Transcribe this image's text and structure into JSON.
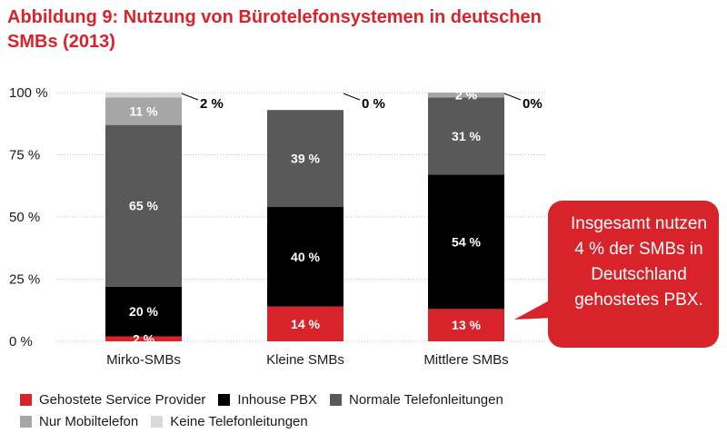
{
  "title": "Abbildung 9: Nutzung von Bürotelefonsystemen in deutschen SMBs (2013)",
  "colors": {
    "gehostet": "#d8232a",
    "inhouse": "#000000",
    "normal": "#595959",
    "mobil": "#a6a6a6",
    "keine": "#d9d9d9",
    "text": "#1a1a1a"
  },
  "callout": "Insgesamt nutzen 4 % der SMBs in Deutschland gehostetes PBX.",
  "chart_data": {
    "type": "bar",
    "stacked": true,
    "title": "Abbildung 9: Nutzung von Bürotelefonsystemen in deutschen SMBs (2013)",
    "categories": [
      "Mirko-SMBs",
      "Kleine SMBs",
      "Mittlere SMBs"
    ],
    "ylim": [
      0,
      100
    ],
    "yticks": [
      0,
      25,
      50,
      75,
      100
    ],
    "ytick_labels": [
      "0 %",
      "25 %",
      "50 %",
      "75 %",
      "100 %"
    ],
    "series": [
      {
        "name": "Gehostete Service Provider",
        "color": "#d8232a",
        "values": [
          2,
          14,
          13
        ],
        "labels": [
          "2 %",
          "14 %",
          "13 %"
        ]
      },
      {
        "name": "Inhouse PBX",
        "color": "#000000",
        "values": [
          20,
          40,
          54
        ],
        "labels": [
          "20 %",
          "40 %",
          "54 %"
        ]
      },
      {
        "name": "Normale Telefonleitungen",
        "color": "#595959",
        "values": [
          65,
          39,
          31
        ],
        "labels": [
          "65 %",
          "39 %",
          "31 %"
        ]
      },
      {
        "name": "Nur Mobiltelefon",
        "color": "#a6a6a6",
        "values": [
          11,
          0,
          2
        ],
        "labels": [
          "11 %",
          "",
          "2 %"
        ]
      },
      {
        "name": "Keine Telefonleitungen",
        "color": "#d9d9d9",
        "values": [
          2,
          0,
          0
        ],
        "labels": [
          "2 %",
          "0 %",
          "0%"
        ]
      }
    ],
    "legend_position": "bottom"
  }
}
